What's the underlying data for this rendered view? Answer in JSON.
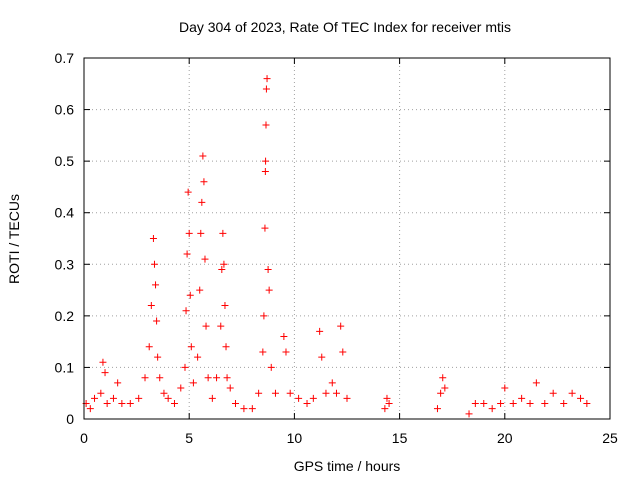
{
  "chart_data": {
    "type": "scatter",
    "title": "Day 304 of 2023, Rate Of TEC Index for receiver mtis",
    "xlabel": "GPS time / hours",
    "ylabel": "ROTI / TECUs",
    "xlim": [
      0,
      25
    ],
    "ylim": [
      0,
      0.7
    ],
    "xticks": [
      0,
      5,
      10,
      15,
      20,
      25
    ],
    "yticks": [
      0,
      0.1,
      0.2,
      0.3,
      0.4,
      0.5,
      0.6,
      0.7
    ],
    "grid": true,
    "marker": "plus",
    "color": "#ff0000",
    "points": [
      [
        0.1,
        0.03
      ],
      [
        0.3,
        0.02
      ],
      [
        0.5,
        0.04
      ],
      [
        0.8,
        0.05
      ],
      [
        0.9,
        0.11
      ],
      [
        1.0,
        0.09
      ],
      [
        1.1,
        0.03
      ],
      [
        1.4,
        0.04
      ],
      [
        1.6,
        0.07
      ],
      [
        1.8,
        0.03
      ],
      [
        2.2,
        0.03
      ],
      [
        2.6,
        0.04
      ],
      [
        2.9,
        0.08
      ],
      [
        3.1,
        0.14
      ],
      [
        3.2,
        0.22
      ],
      [
        3.3,
        0.35
      ],
      [
        3.35,
        0.3
      ],
      [
        3.4,
        0.26
      ],
      [
        3.45,
        0.19
      ],
      [
        3.5,
        0.12
      ],
      [
        3.6,
        0.08
      ],
      [
        3.8,
        0.05
      ],
      [
        4.0,
        0.04
      ],
      [
        4.3,
        0.03
      ],
      [
        4.6,
        0.06
      ],
      [
        4.8,
        0.1
      ],
      [
        4.85,
        0.21
      ],
      [
        4.9,
        0.32
      ],
      [
        4.95,
        0.44
      ],
      [
        5.0,
        0.36
      ],
      [
        5.05,
        0.24
      ],
      [
        5.1,
        0.14
      ],
      [
        5.2,
        0.07
      ],
      [
        5.4,
        0.12
      ],
      [
        5.5,
        0.25
      ],
      [
        5.55,
        0.36
      ],
      [
        5.6,
        0.42
      ],
      [
        5.65,
        0.51
      ],
      [
        5.7,
        0.46
      ],
      [
        5.75,
        0.31
      ],
      [
        5.8,
        0.18
      ],
      [
        5.9,
        0.08
      ],
      [
        6.1,
        0.04
      ],
      [
        6.3,
        0.08
      ],
      [
        6.5,
        0.18
      ],
      [
        6.55,
        0.29
      ],
      [
        6.6,
        0.36
      ],
      [
        6.65,
        0.3
      ],
      [
        6.7,
        0.22
      ],
      [
        6.75,
        0.14
      ],
      [
        6.8,
        0.08
      ],
      [
        6.95,
        0.06
      ],
      [
        7.2,
        0.03
      ],
      [
        7.6,
        0.02
      ],
      [
        8.0,
        0.02
      ],
      [
        8.3,
        0.05
      ],
      [
        8.5,
        0.13
      ],
      [
        8.55,
        0.2
      ],
      [
        8.6,
        0.37
      ],
      [
        8.62,
        0.48
      ],
      [
        8.63,
        0.5
      ],
      [
        8.65,
        0.57
      ],
      [
        8.67,
        0.64
      ],
      [
        8.7,
        0.66
      ],
      [
        8.75,
        0.29
      ],
      [
        8.8,
        0.25
      ],
      [
        8.9,
        0.1
      ],
      [
        9.1,
        0.05
      ],
      [
        9.5,
        0.16
      ],
      [
        9.6,
        0.13
      ],
      [
        9.8,
        0.05
      ],
      [
        10.2,
        0.04
      ],
      [
        10.6,
        0.03
      ],
      [
        10.9,
        0.04
      ],
      [
        11.2,
        0.17
      ],
      [
        11.3,
        0.12
      ],
      [
        11.5,
        0.05
      ],
      [
        11.8,
        0.07
      ],
      [
        12.0,
        0.05
      ],
      [
        12.2,
        0.18
      ],
      [
        12.3,
        0.13
      ],
      [
        12.5,
        0.04
      ],
      [
        14.3,
        0.02
      ],
      [
        14.4,
        0.04
      ],
      [
        14.5,
        0.03
      ],
      [
        16.8,
        0.02
      ],
      [
        16.95,
        0.05
      ],
      [
        17.05,
        0.08
      ],
      [
        17.15,
        0.06
      ],
      [
        18.3,
        0.01
      ],
      [
        18.6,
        0.03
      ],
      [
        19.0,
        0.03
      ],
      [
        19.4,
        0.02
      ],
      [
        19.8,
        0.03
      ],
      [
        20.0,
        0.06
      ],
      [
        20.4,
        0.03
      ],
      [
        20.8,
        0.04
      ],
      [
        21.2,
        0.03
      ],
      [
        21.5,
        0.07
      ],
      [
        21.9,
        0.03
      ],
      [
        22.3,
        0.05
      ],
      [
        22.8,
        0.03
      ],
      [
        23.2,
        0.05
      ],
      [
        23.6,
        0.04
      ],
      [
        23.9,
        0.03
      ]
    ]
  }
}
